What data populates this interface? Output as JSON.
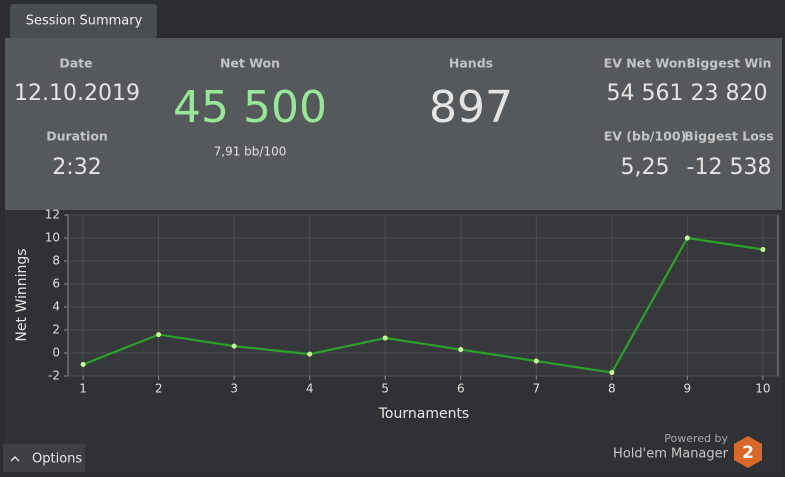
{
  "tab": "Session Summary",
  "stats": {
    "date": {
      "label": "Date",
      "value": "12.10.2019"
    },
    "duration": {
      "label": "Duration",
      "value": "2:32"
    },
    "net_won": {
      "label": "Net Won",
      "value": "45 500",
      "sub": "7,91 bb/100"
    },
    "hands": {
      "label": "Hands",
      "value": "897"
    },
    "ev_net_won": {
      "label": "EV Net Won",
      "value": "54 561"
    },
    "biggest_win": {
      "label": "Biggest Win",
      "value": "23 820"
    },
    "ev_bb100": {
      "label": "EV (bb/100)",
      "value": "5,25"
    },
    "biggest_loss": {
      "label": "Biggest Loss",
      "value": "-12 538"
    }
  },
  "chart_data": {
    "type": "line",
    "xlabel": "Tournaments",
    "ylabel": "Net Winnings",
    "x": [
      1,
      2,
      3,
      4,
      5,
      6,
      7,
      8,
      9,
      10
    ],
    "series": [
      {
        "color": "#2ca02c",
        "marker_color": "#ccff99",
        "values": [
          -1.0,
          1.6,
          0.6,
          -0.1,
          1.3,
          0.3,
          -0.7,
          -1.7,
          10,
          9
        ]
      }
    ],
    "xlim": [
      0.8,
      10.2
    ],
    "ylim": [
      -2,
      12
    ],
    "xticks": [
      1,
      2,
      3,
      4,
      5,
      6,
      7,
      8,
      9,
      10
    ],
    "yticks": [
      -2,
      0,
      2,
      4,
      6,
      8,
      10,
      12
    ],
    "grid": true
  },
  "footer": {
    "powered_by": "Powered by",
    "brand": "Hold'em Manager",
    "logo": "2"
  },
  "options": "Options"
}
